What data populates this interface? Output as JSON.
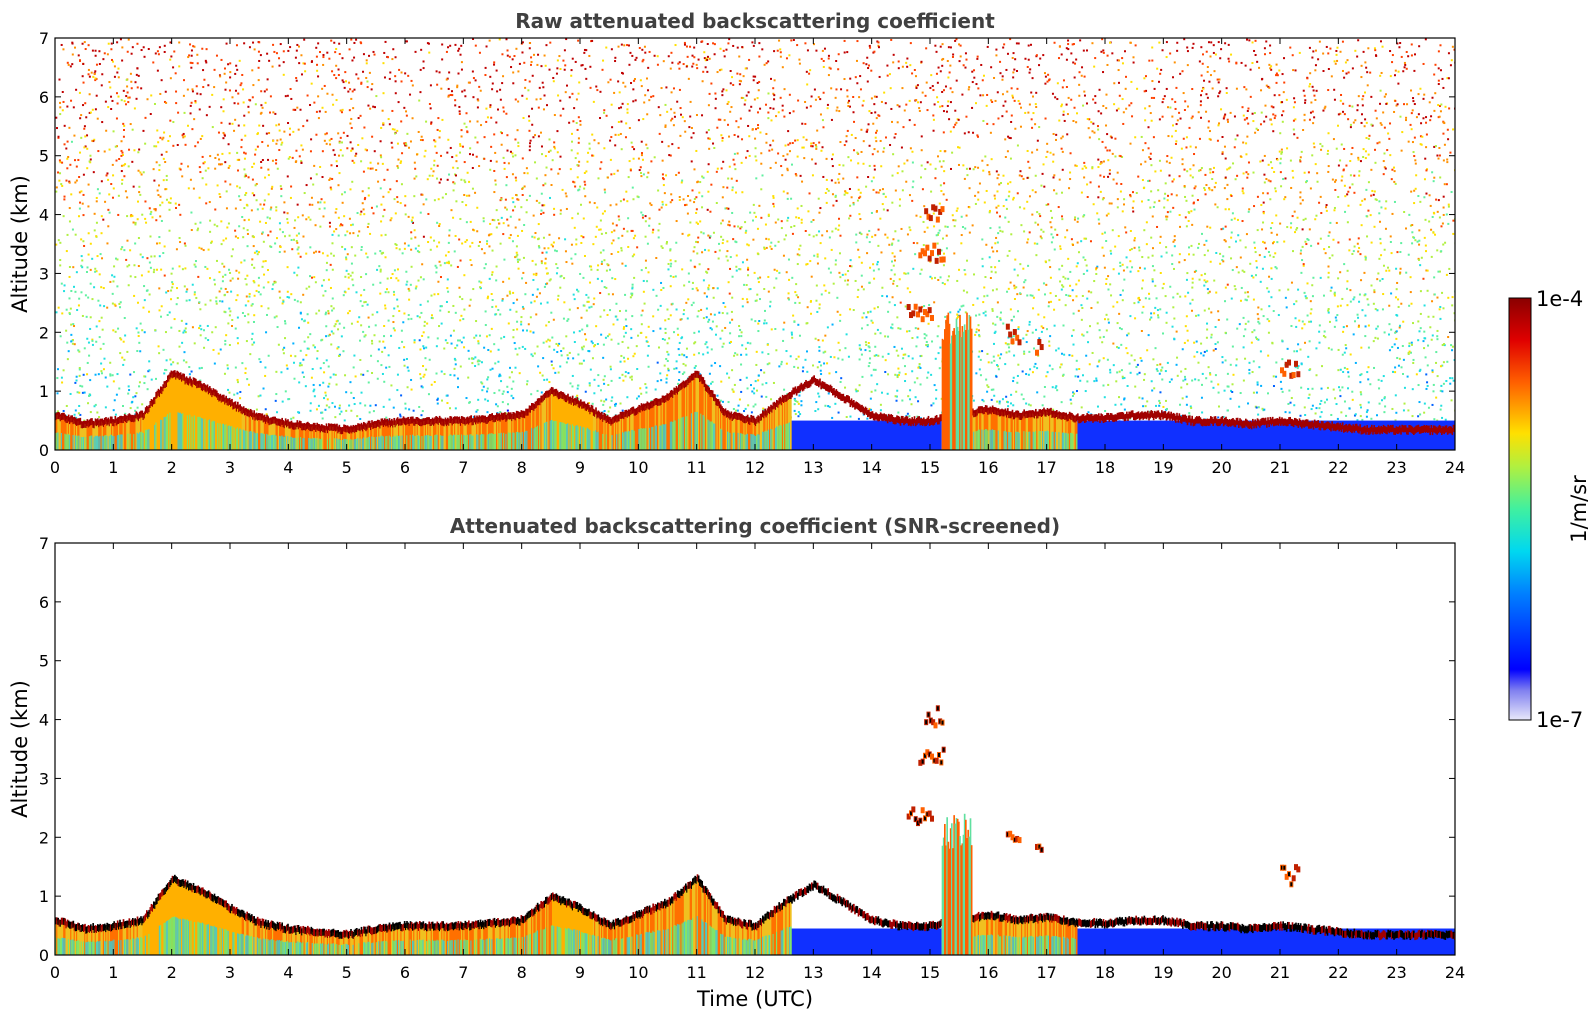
{
  "chart_data": [
    {
      "type": "heatmap",
      "title": "Raw attenuated backscattering coefficient",
      "xlabel": "",
      "ylabel": "Altitude (km)",
      "xlim": [
        0,
        24
      ],
      "ylim": [
        0,
        7
      ],
      "x_ticks": [
        "0",
        "1",
        "2",
        "3",
        "4",
        "5",
        "6",
        "7",
        "8",
        "9",
        "10",
        "11",
        "12",
        "13",
        "14",
        "15",
        "16",
        "17",
        "18",
        "19",
        "20",
        "21",
        "22",
        "23",
        "24"
      ],
      "y_ticks": [
        "0",
        "1",
        "2",
        "3",
        "4",
        "5",
        "6",
        "7"
      ],
      "boundary_layer_top_km": {
        "x": [
          0,
          0.5,
          1,
          1.5,
          2,
          2.5,
          3,
          3.5,
          4,
          4.5,
          5,
          5.5,
          6,
          6.5,
          7,
          7.5,
          8,
          8.5,
          9,
          9.5,
          10,
          10.5,
          11,
          11.5,
          12,
          12.5,
          13,
          13.5,
          14,
          14.5,
          15,
          15.5,
          16,
          16.5,
          17,
          17.5,
          18,
          18.5,
          19,
          19.5,
          20,
          20.5,
          21,
          21.5,
          22,
          22.5,
          23,
          23.5,
          24
        ],
        "y": [
          0.6,
          0.45,
          0.5,
          0.6,
          1.3,
          1.1,
          0.8,
          0.55,
          0.45,
          0.4,
          0.35,
          0.45,
          0.5,
          0.5,
          0.5,
          0.55,
          0.6,
          1.0,
          0.8,
          0.5,
          0.7,
          0.9,
          1.3,
          0.6,
          0.5,
          0.9,
          1.2,
          0.9,
          0.6,
          0.5,
          0.5,
          0.6,
          0.7,
          0.6,
          0.65,
          0.55,
          0.55,
          0.6,
          0.6,
          0.5,
          0.5,
          0.45,
          0.5,
          0.45,
          0.4,
          0.35,
          0.35,
          0.35,
          0.35
        ]
      },
      "elevated_layers": [
        {
          "x_range": [
            14.6,
            15.0
          ],
          "altitude_km": 2.4
        },
        {
          "x_range": [
            14.8,
            15.2
          ],
          "altitude_km": 3.4
        },
        {
          "x_range": [
            14.9,
            15.2
          ],
          "altitude_km": 4.1
        },
        {
          "x_range": [
            16.3,
            16.5
          ],
          "altitude_km": 2.0
        },
        {
          "x_range": [
            16.8,
            16.9
          ],
          "altitude_km": 1.8
        },
        {
          "x_range": [
            21.0,
            21.3
          ],
          "altitude_km": 1.4
        }
      ]
    },
    {
      "type": "heatmap",
      "title": "Attenuated backscattering coefficient (SNR-screened)",
      "xlabel": "Time (UTC)",
      "ylabel": "Altitude (km)",
      "xlim": [
        0,
        24
      ],
      "ylim": [
        0,
        7
      ],
      "x_ticks": [
        "0",
        "1",
        "2",
        "3",
        "4",
        "5",
        "6",
        "7",
        "8",
        "9",
        "10",
        "11",
        "12",
        "13",
        "14",
        "15",
        "16",
        "17",
        "18",
        "19",
        "20",
        "21",
        "22",
        "23",
        "24"
      ],
      "y_ticks": [
        "0",
        "1",
        "2",
        "3",
        "4",
        "5",
        "6",
        "7"
      ]
    }
  ],
  "colorbar": {
    "label": "1/m/sr",
    "max_label": "1e-4",
    "min_label": "1e-7",
    "scale": "log",
    "colors": [
      "#e8e8f8",
      "#0000ff",
      "#00c0ff",
      "#40e0c0",
      "#ffe000",
      "#ff6000",
      "#900000"
    ]
  }
}
